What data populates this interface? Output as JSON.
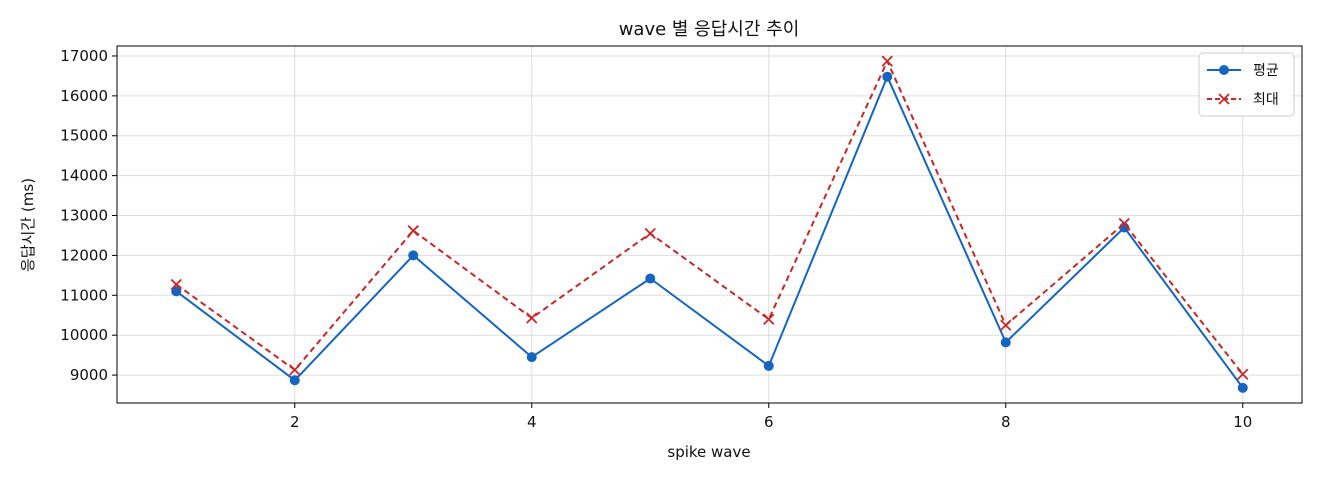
{
  "chart_data": {
    "type": "line",
    "title": "wave 별 응답시간 추이",
    "xlabel": "spike wave",
    "ylabel": "응답시간 (ms)",
    "xlim": [
      0.5,
      10.5
    ],
    "ylim": [
      8300,
      17250
    ],
    "x": [
      1,
      2,
      3,
      4,
      5,
      6,
      7,
      8,
      9,
      10
    ],
    "xticks": [
      2,
      4,
      6,
      8,
      10
    ],
    "yticks": [
      9000,
      10000,
      11000,
      12000,
      13000,
      14000,
      15000,
      16000,
      17000
    ],
    "grid": true,
    "legend_position": "top-right",
    "series": [
      {
        "name": "평균",
        "color": "#1565c0",
        "line_style": "solid",
        "marker": "circle",
        "values": [
          11100,
          8870,
          12000,
          9450,
          11420,
          9230,
          16480,
          9820,
          12700,
          8680
        ]
      },
      {
        "name": "최대",
        "color": "#c62828",
        "line_style": "dashed",
        "marker": "x",
        "values": [
          11270,
          9130,
          12620,
          10430,
          12550,
          10400,
          16870,
          10250,
          12800,
          9020
        ]
      }
    ]
  }
}
